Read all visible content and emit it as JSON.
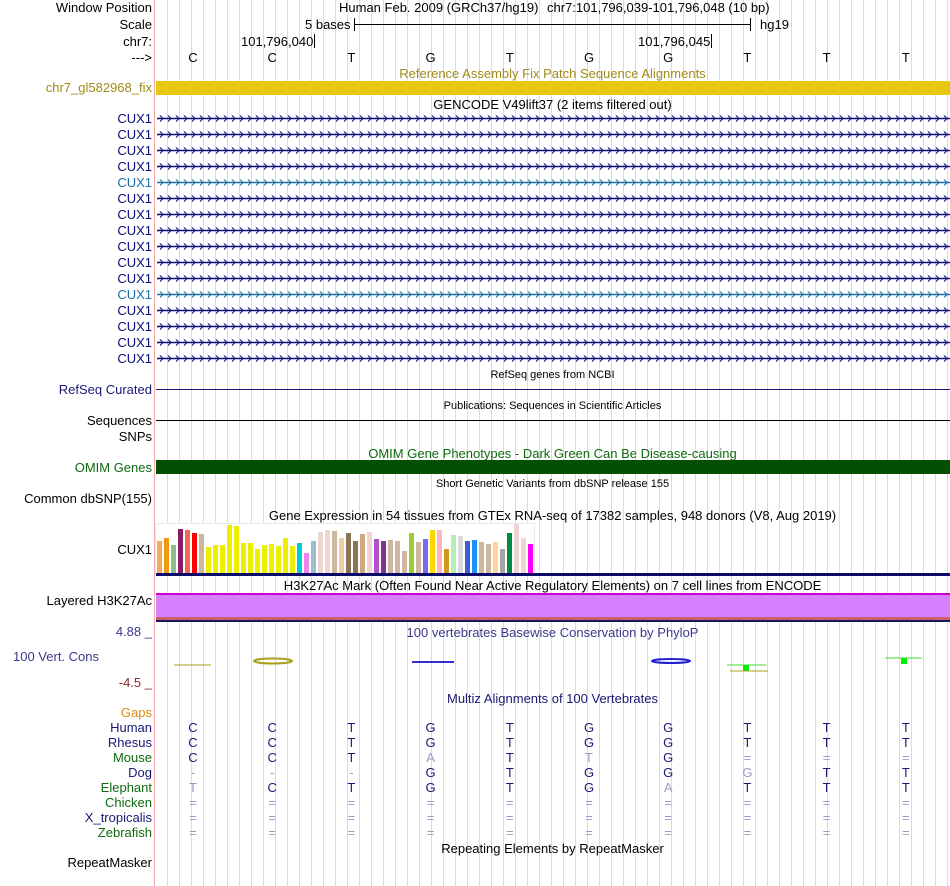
{
  "header": {
    "window_position_label": "Window Position",
    "scale_label": "Scale",
    "chrom_label": "chr7:",
    "strand_label": "--->",
    "assembly_title": "Human Feb. 2009 (GRCh37/hg19)",
    "position": "chr7:101,796,039-101,796,048 (10 bp)",
    "scale_text": "5 bases",
    "db_label": "hg19",
    "coord_1": "101,796,040",
    "coord_2": "101,796,045"
  },
  "sequence": [
    "C",
    "C",
    "T",
    "G",
    "T",
    "G",
    "G",
    "T",
    "T",
    "T"
  ],
  "tracks": {
    "fix_patch": {
      "title": "Reference Assembly Fix Patch Sequence Alignments",
      "label": "chr7_gl582968_fix",
      "color": "#e6c812",
      "label_color": "#a08a1a"
    },
    "gencode": {
      "title": "GENCODE V49lift37 (2 items filtered out)",
      "items": [
        {
          "name": "CUX1",
          "color": "#0b0b7a"
        },
        {
          "name": "CUX1",
          "color": "#0b0b7a"
        },
        {
          "name": "CUX1",
          "color": "#0b0b7a"
        },
        {
          "name": "CUX1",
          "color": "#0b0b7a"
        },
        {
          "name": "CUX1",
          "color": "#1a6fa8"
        },
        {
          "name": "CUX1",
          "color": "#0b0b7a"
        },
        {
          "name": "CUX1",
          "color": "#0b0b7a"
        },
        {
          "name": "CUX1",
          "color": "#0b0b7a"
        },
        {
          "name": "CUX1",
          "color": "#0b0b7a"
        },
        {
          "name": "CUX1",
          "color": "#0b0b7a"
        },
        {
          "name": "CUX1",
          "color": "#0b0b7a"
        },
        {
          "name": "CUX1",
          "color": "#1a6fa8"
        },
        {
          "name": "CUX1",
          "color": "#0b0b7a"
        },
        {
          "name": "CUX1",
          "color": "#0b0b7a"
        },
        {
          "name": "CUX1",
          "color": "#0b0b7a"
        },
        {
          "name": "CUX1",
          "color": "#0b0b7a"
        }
      ]
    },
    "refseq": {
      "title": "RefSeq genes from NCBI",
      "label": "RefSeq Curated",
      "color": "#1a1a75"
    },
    "publications": {
      "title": "Publications: Sequences in Scientific Articles",
      "label_1": "Sequences",
      "label_2": "SNPs"
    },
    "omim": {
      "title": "OMIM Gene Phenotypes - Dark Green Can Be Disease-causing",
      "label": "OMIM Genes",
      "color": "#034f03",
      "label_color": "#0f6a0f"
    },
    "dbsnp": {
      "title": "Short Genetic Variants from dbSNP release 155",
      "label": "Common dbSNP(155)"
    },
    "gtex": {
      "title": "Gene Expression in 54 tissues from GTEx RNA-seq of 17382 samples, 948 donors (V8, Aug 2019)",
      "label": "CUX1",
      "bars": [
        {
          "h": 0.66,
          "c": "#f7a85c"
        },
        {
          "h": 0.72,
          "c": "#ee9a0e"
        },
        {
          "h": 0.58,
          "c": "#8fbc8f"
        },
        {
          "h": 0.9,
          "c": "#8b1c62"
        },
        {
          "h": 0.88,
          "c": "#ee6a50"
        },
        {
          "h": 0.82,
          "c": "#ff0000"
        },
        {
          "h": 0.8,
          "c": "#cdb79e"
        },
        {
          "h": 0.53,
          "c": "#eeee00"
        },
        {
          "h": 0.58,
          "c": "#eeee00"
        },
        {
          "h": 0.58,
          "c": "#eeee00"
        },
        {
          "h": 0.97,
          "c": "#eeee00"
        },
        {
          "h": 0.95,
          "c": "#eeee00"
        },
        {
          "h": 0.62,
          "c": "#eeee00"
        },
        {
          "h": 0.62,
          "c": "#eeee00"
        },
        {
          "h": 0.5,
          "c": "#eeee00"
        },
        {
          "h": 0.58,
          "c": "#eeee00"
        },
        {
          "h": 0.6,
          "c": "#eeee00"
        },
        {
          "h": 0.55,
          "c": "#eeee00"
        },
        {
          "h": 0.72,
          "c": "#eeee00"
        },
        {
          "h": 0.55,
          "c": "#eeee00"
        },
        {
          "h": 0.62,
          "c": "#00cdcd"
        },
        {
          "h": 0.42,
          "c": "#ee82ee"
        },
        {
          "h": 0.66,
          "c": "#9ac0cd"
        },
        {
          "h": 0.84,
          "c": "#eed5d2"
        },
        {
          "h": 0.88,
          "c": "#eed5d2"
        },
        {
          "h": 0.85,
          "c": "#cdb79e"
        },
        {
          "h": 0.72,
          "c": "#eecfa1"
        },
        {
          "h": 0.82,
          "c": "#8b7355"
        },
        {
          "h": 0.66,
          "c": "#8b7355"
        },
        {
          "h": 0.8,
          "c": "#cdaa7d"
        },
        {
          "h": 0.84,
          "c": "#eed5d2"
        },
        {
          "h": 0.7,
          "c": "#b452cd"
        },
        {
          "h": 0.65,
          "c": "#7a378b"
        },
        {
          "h": 0.67,
          "c": "#cdb79e"
        },
        {
          "h": 0.66,
          "c": "#cdb79e"
        },
        {
          "h": 0.45,
          "c": "#cdb79e"
        },
        {
          "h": 0.82,
          "c": "#9acd32"
        },
        {
          "h": 0.63,
          "c": "#cdb79e"
        },
        {
          "h": 0.7,
          "c": "#7b68ee"
        },
        {
          "h": 0.88,
          "c": "#ffd700"
        },
        {
          "h": 0.88,
          "c": "#ffb6c1"
        },
        {
          "h": 0.5,
          "c": "#cd9b1d"
        },
        {
          "h": 0.77,
          "c": "#b4eeb4"
        },
        {
          "h": 0.75,
          "c": "#d9d9d9"
        },
        {
          "h": 0.65,
          "c": "#3a5fcd"
        },
        {
          "h": 0.67,
          "c": "#1e90ff"
        },
        {
          "h": 0.63,
          "c": "#cdb79e"
        },
        {
          "h": 0.59,
          "c": "#cdb79e"
        },
        {
          "h": 0.64,
          "c": "#ffd39b"
        },
        {
          "h": 0.5,
          "c": "#a6a6a6"
        },
        {
          "h": 0.82,
          "c": "#008b45"
        },
        {
          "h": 1.0,
          "c": "#eed5d2"
        },
        {
          "h": 0.72,
          "c": "#eed5d2"
        },
        {
          "h": 0.6,
          "c": "#ff00ff"
        }
      ]
    },
    "h3k27ac": {
      "title": "H3K27Ac Mark (Often Found Near Active Regulatory Elements) on 7 cell lines from ENCODE",
      "label": "Layered H3K27Ac",
      "fill": "#d580ff",
      "top_edge": "#cc00cc",
      "bottom_band": "#cd6070"
    },
    "phylop": {
      "title": "100 vertebrates Basewise Conservation by PhyloP",
      "label": "100 Vert. Cons",
      "max_label": "4.88 _",
      "min_label": "-4.5 _",
      "label_color": "#3a3a8c",
      "min_color": "#8b2a2a"
    },
    "multiz": {
      "title": "Multiz Alignments of 100 Vertebrates",
      "gaps_label": "Gaps",
      "species": [
        {
          "name": "Human",
          "color": "#1a1a75",
          "bases": [
            "C",
            "C",
            "T",
            "G",
            "T",
            "G",
            "G",
            "T",
            "T",
            "T"
          ],
          "faint": []
        },
        {
          "name": "Rhesus",
          "color": "#1a1a75",
          "bases": [
            "C",
            "C",
            "T",
            "G",
            "T",
            "G",
            "G",
            "T",
            "T",
            "T"
          ],
          "faint": []
        },
        {
          "name": "Mouse",
          "color": "#0f6a0f",
          "bases": [
            "C",
            "C",
            "T",
            "A",
            "T",
            "T",
            "G",
            "=",
            "=",
            "="
          ],
          "faint": [
            3,
            5,
            7,
            8,
            9
          ]
        },
        {
          "name": "Dog",
          "color": "#1a1a75",
          "bases": [
            "-",
            "-",
            "-",
            "G",
            "T",
            "G",
            "G",
            "G",
            "T",
            "T"
          ],
          "faint": [
            0,
            1,
            2,
            7
          ]
        },
        {
          "name": "Elephant",
          "color": "#0f6a0f",
          "bases": [
            "T",
            "C",
            "T",
            "G",
            "T",
            "G",
            "A",
            "T",
            "T",
            "T"
          ],
          "faint": [
            0,
            6
          ]
        },
        {
          "name": "Chicken",
          "color": "#0f6a0f",
          "bases": [
            "=",
            "=",
            "=",
            "=",
            "=",
            "=",
            "=",
            "=",
            "=",
            "="
          ],
          "faint": [
            0,
            1,
            2,
            3,
            4,
            5,
            6,
            7,
            8,
            9
          ]
        },
        {
          "name": "X_tropicalis",
          "color": "#1a1a75",
          "bases": [
            "=",
            "=",
            "=",
            "=",
            "=",
            "=",
            "=",
            "=",
            "=",
            "="
          ],
          "faint": [
            0,
            1,
            2,
            3,
            4,
            5,
            6,
            7,
            8,
            9
          ]
        },
        {
          "name": "Zebrafish",
          "color": "#0f6a0f",
          "bases": [
            "=",
            "=",
            "=",
            "=",
            "=",
            "=",
            "=",
            "=",
            "=",
            "="
          ],
          "faint": [
            0,
            1,
            2,
            3,
            4,
            5,
            6,
            7,
            8,
            9
          ]
        }
      ]
    },
    "repeatmasker": {
      "title": "Repeating Elements by RepeatMasker",
      "label": "RepeatMasker"
    }
  }
}
